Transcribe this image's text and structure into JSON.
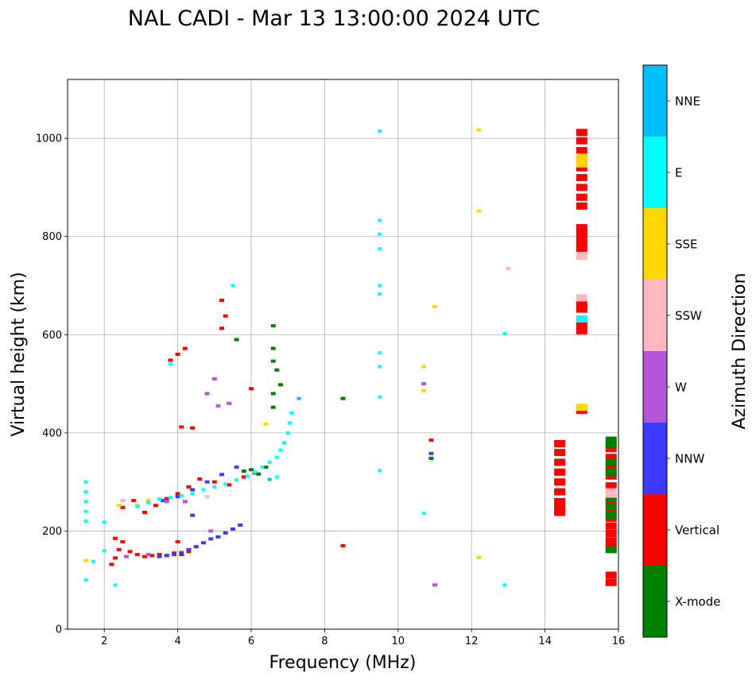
{
  "chart_data": {
    "type": "scatter",
    "title": "NAL CADI - Mar 13 13:00:00 2024 UTC",
    "xlabel": "Frequency (MHz)",
    "ylabel": "Virtual height (km)",
    "xlim": [
      1,
      16
    ],
    "ylim": [
      0,
      1120
    ],
    "xticks": [
      2,
      4,
      6,
      8,
      10,
      12,
      14,
      16
    ],
    "yticks": [
      0,
      200,
      400,
      600,
      800,
      1000
    ],
    "grid": true,
    "colorbar": {
      "label": "Azimuth Direction",
      "categories": [
        "X-mode",
        "Vertical",
        "NNW",
        "W",
        "SSW",
        "SSE",
        "E",
        "NNE"
      ],
      "colors": [
        "#008000",
        "#ff0000",
        "#3a3aff",
        "#b455d8",
        "#ffb6c1",
        "#ffd700",
        "#00ffff",
        "#00bfff"
      ]
    },
    "series": [
      {
        "name": "Vertical",
        "points": [
          [
            2.3,
            185
          ],
          [
            2.5,
            178
          ],
          [
            2.4,
            162
          ],
          [
            2.7,
            158
          ],
          [
            2.9,
            152
          ],
          [
            3.1,
            148
          ],
          [
            3.3,
            150
          ],
          [
            3.5,
            152
          ],
          [
            3.7,
            150
          ],
          [
            3.9,
            155
          ],
          [
            4.1,
            152
          ],
          [
            4.3,
            158
          ],
          [
            4.0,
            178
          ],
          [
            2.3,
            145
          ],
          [
            2.2,
            132
          ],
          [
            2.5,
            248
          ],
          [
            2.8,
            262
          ],
          [
            3.1,
            238
          ],
          [
            3.4,
            252
          ],
          [
            3.7,
            266
          ],
          [
            4.0,
            276
          ],
          [
            4.3,
            290
          ],
          [
            4.6,
            306
          ],
          [
            5.0,
            300
          ],
          [
            5.4,
            294
          ],
          [
            5.8,
            310
          ],
          [
            6.1,
            318
          ],
          [
            3.8,
            548
          ],
          [
            4.0,
            560
          ],
          [
            4.2,
            572
          ],
          [
            5.2,
            613
          ],
          [
            5.3,
            638
          ],
          [
            5.2,
            670
          ],
          [
            6.0,
            490
          ],
          [
            4.1,
            412
          ],
          [
            4.4,
            410
          ],
          [
            8.5,
            170
          ],
          [
            10.9,
            385
          ],
          [
            14.4,
            378
          ],
          [
            14.4,
            360
          ],
          [
            14.4,
            340
          ],
          [
            14.4,
            320
          ],
          [
            14.4,
            300
          ],
          [
            14.4,
            280
          ],
          [
            14.4,
            260
          ],
          [
            14.4,
            248
          ],
          [
            14.4,
            238
          ],
          [
            15.0,
            1012
          ],
          [
            15.0,
            995
          ],
          [
            15.0,
            975
          ],
          [
            15.0,
            958
          ],
          [
            15.0,
            940
          ],
          [
            15.0,
            920
          ],
          [
            15.0,
            900
          ],
          [
            15.0,
            880
          ],
          [
            15.0,
            862
          ],
          [
            15.0,
            818
          ],
          [
            15.0,
            804
          ],
          [
            15.0,
            790
          ],
          [
            15.0,
            776
          ],
          [
            15.0,
            664
          ],
          [
            15.0,
            652
          ],
          [
            15.0,
            620
          ],
          [
            15.0,
            608
          ],
          [
            15.0,
            446
          ],
          [
            15.8,
            368
          ],
          [
            15.8,
            350
          ],
          [
            15.8,
            330
          ],
          [
            15.8,
            312
          ],
          [
            15.8,
            292
          ],
          [
            15.8,
            260
          ],
          [
            15.8,
            240
          ],
          [
            15.8,
            226
          ],
          [
            15.8,
            210
          ],
          [
            15.8,
            195
          ],
          [
            15.8,
            180
          ],
          [
            15.8,
            168
          ],
          [
            15.8,
            110
          ],
          [
            15.8,
            95
          ]
        ]
      },
      {
        "name": "X-mode",
        "points": [
          [
            5.8,
            322
          ],
          [
            6.2,
            316
          ],
          [
            6.0,
            325
          ],
          [
            6.4,
            330
          ],
          [
            6.6,
            618
          ],
          [
            6.6,
            572
          ],
          [
            6.6,
            546
          ],
          [
            6.7,
            528
          ],
          [
            6.8,
            498
          ],
          [
            6.6,
            480
          ],
          [
            6.6,
            452
          ],
          [
            5.6,
            590
          ],
          [
            8.5,
            470
          ],
          [
            10.9,
            348
          ],
          [
            15.8,
            385
          ],
          [
            15.8,
            376
          ],
          [
            15.8,
            340
          ],
          [
            15.8,
            320
          ],
          [
            15.8,
            268
          ],
          [
            15.8,
            250
          ],
          [
            15.8,
            232
          ],
          [
            15.8,
            162
          ]
        ]
      },
      {
        "name": "NNW",
        "points": [
          [
            3.5,
            148
          ],
          [
            3.7,
            150
          ],
          [
            3.9,
            152
          ],
          [
            4.1,
            156
          ],
          [
            4.3,
            162
          ],
          [
            4.5,
            168
          ],
          [
            4.7,
            176
          ],
          [
            4.9,
            184
          ],
          [
            5.1,
            188
          ],
          [
            5.3,
            196
          ],
          [
            5.5,
            204
          ],
          [
            5.7,
            212
          ],
          [
            3.6,
            262
          ],
          [
            4.0,
            270
          ],
          [
            4.4,
            284
          ],
          [
            4.8,
            300
          ],
          [
            5.2,
            315
          ],
          [
            5.6,
            330
          ],
          [
            4.4,
            232
          ],
          [
            10.9,
            358
          ]
        ]
      },
      {
        "name": "W",
        "points": [
          [
            2.6,
            148
          ],
          [
            3.2,
            152
          ],
          [
            3.7,
            260
          ],
          [
            4.2,
            260
          ],
          [
            4.9,
            200
          ],
          [
            5.1,
            455
          ],
          [
            5.4,
            460
          ],
          [
            5.0,
            510
          ],
          [
            4.8,
            480
          ],
          [
            10.7,
            500
          ],
          [
            11.0,
            90
          ]
        ]
      },
      {
        "name": "SSW",
        "points": [
          [
            2.5,
            262
          ],
          [
            4.8,
            270
          ],
          [
            13.0,
            735
          ],
          [
            15.0,
            760
          ],
          [
            15.0,
            675
          ],
          [
            15.8,
            280
          ],
          [
            15.8,
            275
          ]
        ]
      },
      {
        "name": "SSE",
        "points": [
          [
            1.5,
            140
          ],
          [
            2.4,
            252
          ],
          [
            2.9,
            252
          ],
          [
            3.2,
            262
          ],
          [
            6.4,
            418
          ],
          [
            10.7,
            535
          ],
          [
            10.7,
            486
          ],
          [
            11.0,
            657
          ],
          [
            12.2,
            1017
          ],
          [
            12.2,
            852
          ],
          [
            12.2,
            146
          ],
          [
            15.0,
            962
          ],
          [
            15.0,
            948
          ],
          [
            15.0,
            452
          ]
        ]
      },
      {
        "name": "E",
        "points": [
          [
            1.5,
            300
          ],
          [
            1.5,
            280
          ],
          [
            1.5,
            260
          ],
          [
            1.5,
            240
          ],
          [
            1.5,
            220
          ],
          [
            1.5,
            100
          ],
          [
            1.7,
            138
          ],
          [
            2.0,
            218
          ],
          [
            2.0,
            160
          ],
          [
            2.3,
            90
          ],
          [
            2.9,
            250
          ],
          [
            3.2,
            258
          ],
          [
            3.5,
            265
          ],
          [
            3.8,
            268
          ],
          [
            4.1,
            272
          ],
          [
            4.4,
            276
          ],
          [
            4.7,
            284
          ],
          [
            5.0,
            290
          ],
          [
            5.3,
            296
          ],
          [
            5.6,
            304
          ],
          [
            5.9,
            312
          ],
          [
            6.1,
            320
          ],
          [
            6.3,
            330
          ],
          [
            6.5,
            340
          ],
          [
            6.7,
            350
          ],
          [
            6.8,
            365
          ],
          [
            6.9,
            380
          ],
          [
            7.0,
            400
          ],
          [
            7.05,
            420
          ],
          [
            7.1,
            440
          ],
          [
            6.7,
            310
          ],
          [
            3.8,
            540
          ],
          [
            5.5,
            700
          ],
          [
            9.5,
            1015
          ],
          [
            9.5,
            833
          ],
          [
            9.5,
            805
          ],
          [
            9.5,
            775
          ],
          [
            9.5,
            700
          ],
          [
            9.5,
            683
          ],
          [
            9.5,
            563
          ],
          [
            9.5,
            535
          ],
          [
            9.5,
            473
          ],
          [
            9.5,
            323
          ],
          [
            10.7,
            236
          ],
          [
            12.9,
            602
          ],
          [
            12.9,
            90
          ],
          [
            15.0,
            632
          ]
        ]
      },
      {
        "name": "NNE",
        "points": [
          [
            7.3,
            470
          ],
          [
            6.5,
            305
          ]
        ]
      }
    ]
  }
}
